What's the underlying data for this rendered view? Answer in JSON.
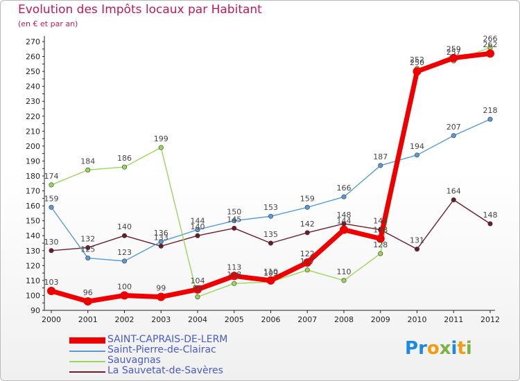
{
  "chart_data": {
    "type": "line",
    "title": "Evolution des Impôts locaux par Habitant",
    "subtitle": "(en € et par an)",
    "xlabel": "",
    "ylabel": "",
    "categories": [
      "2000",
      "2001",
      "2002",
      "2003",
      "2004",
      "2005",
      "2006",
      "2007",
      "2008",
      "2009",
      "2010",
      "2011",
      "2012"
    ],
    "ylim": [
      90,
      270
    ],
    "yticks": [
      90,
      100,
      110,
      120,
      130,
      140,
      150,
      160,
      170,
      180,
      190,
      200,
      210,
      220,
      230,
      240,
      250,
      260,
      270
    ],
    "grid": false,
    "legend_position": "bottom-left",
    "series": [
      {
        "name": "La Sauvetat-de-Savères",
        "color": "#6b1c2a",
        "values": [
          130,
          132,
          140,
          133,
          140,
          145,
          135,
          142,
          148,
          144,
          131,
          164,
          148
        ],
        "labels": [
          "130",
          "132",
          "140",
          "133",
          "140",
          "145",
          "135",
          "142",
          "148",
          "144",
          "131",
          "164",
          "148"
        ]
      },
      {
        "name": "Saint-Pierre-de-Clairac",
        "color": "#5a9bd4",
        "values": [
          159,
          125,
          123,
          136,
          144,
          150,
          153,
          159,
          166,
          187,
          194,
          207,
          218
        ],
        "labels": [
          "159",
          "125",
          "123",
          "136",
          "144",
          "150",
          "153",
          "159",
          "166",
          "187",
          "194",
          "207",
          "218"
        ]
      },
      {
        "name": "Sauvagnas",
        "color": "#99d65c",
        "values": [
          174,
          184,
          186,
          199,
          99,
          108,
          109,
          117,
          110,
          128,
          252,
          257,
          266
        ],
        "labels": [
          "174",
          "184",
          "186",
          "199",
          "99",
          "108",
          "109",
          "117",
          "110",
          "128",
          "252",
          "257",
          "266"
        ]
      },
      {
        "name": "SAINT-CAPRAIS-DE-LERM",
        "color": "#ee0000",
        "values": [
          103,
          96,
          100,
          99,
          104,
          113,
          110,
          122,
          144,
          138,
          250,
          259,
          262
        ],
        "labels": [
          "103",
          "96",
          "100",
          "99",
          "104",
          "113",
          "110",
          "122",
          "144",
          "138",
          "250",
          "259",
          "262"
        ]
      }
    ],
    "legend_order": [
      "SAINT-CAPRAIS-DE-LERM",
      "Saint-Pierre-de-Clairac",
      "Sauvagnas",
      "La Sauvetat-de-Savères"
    ]
  },
  "legend": {
    "items": [
      {
        "label": "SAINT-CAPRAIS-DE-LERM",
        "color": "#ee0000"
      },
      {
        "label": "Saint-Pierre-de-Clairac",
        "color": "#5a9bd4"
      },
      {
        "label": "Sauvagnas",
        "color": "#99d65c"
      },
      {
        "label": "La Sauvetat-de-Savères",
        "color": "#6b1c2a"
      }
    ]
  },
  "brand": {
    "letters": [
      {
        "char": "P",
        "color": "#1e88e5"
      },
      {
        "char": "r",
        "color": "#1e88e5"
      },
      {
        "char": "o",
        "color": "#f39c12"
      },
      {
        "char": "x",
        "color": "#7cb342"
      },
      {
        "char": "i",
        "color": "#1e88e5"
      },
      {
        "char": "t",
        "color": "#f39c12"
      },
      {
        "char": "i",
        "color": "#7cb342"
      }
    ]
  }
}
